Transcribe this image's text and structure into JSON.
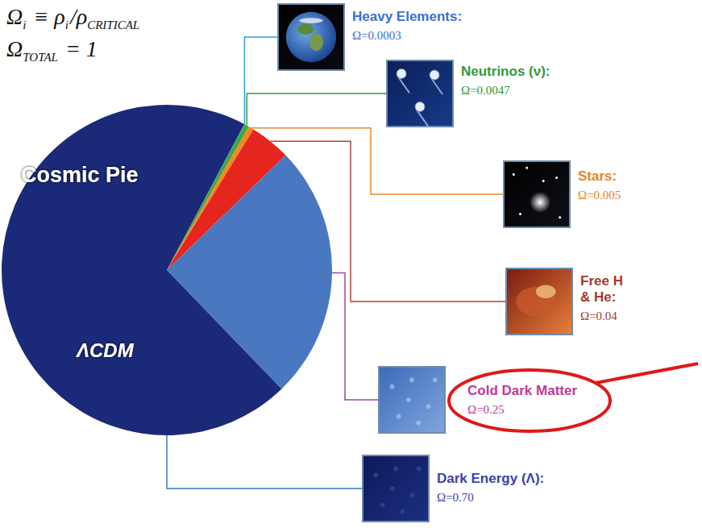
{
  "chart_data": {
    "type": "pie",
    "formula": [
      [
        [
          "Ω",
          "i"
        ],
        [
          " ≡ ρ",
          "i"
        ],
        [
          "/ρ",
          "CRITICAL"
        ]
      ],
      [
        [
          "Ω",
          "TOTAL"
        ],
        [
          " = 1"
        ]
      ]
    ],
    "annotations": [
      "Cosmic Pie",
      "ΛCDM"
    ],
    "categories": [
      "Heavy Elements:",
      "Neutrinos (ν):",
      "Stars:",
      "Free H & He:",
      "Cold Dark Matter",
      "Dark Energy (Λ):"
    ],
    "values": [
      0.0003,
      0.0047,
      0.005,
      0.04,
      0.25,
      0.7
    ],
    "value_labels": [
      "Ω=0.0003",
      "Ω=0.0047",
      "Ω=0.005",
      "Ω=0.04",
      "Ω=0.25",
      "Ω=0.70"
    ],
    "colors": [
      "#2e86c8",
      "#3aa84a",
      "#f08a1c",
      "#e5261f",
      "#4a78c0",
      "#1b2a78"
    ],
    "data_labels": true
  }
}
